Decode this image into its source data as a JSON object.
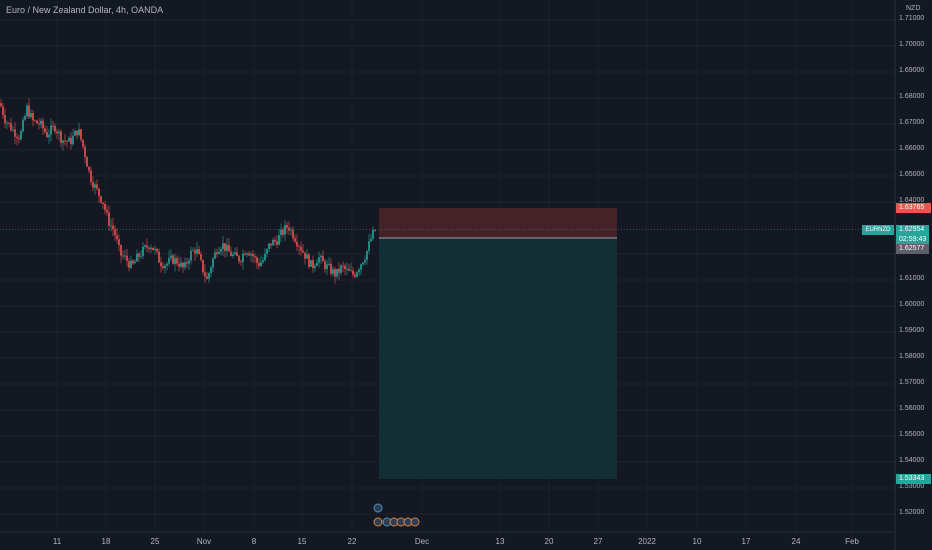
{
  "header": {
    "title": "Euro / New Zealand Dollar, 4h, OANDA",
    "currency": "NZD"
  },
  "price_axis": {
    "labels": [
      "1.71000",
      "1.70000",
      "1.69000",
      "1.68000",
      "1.67000",
      "1.66000",
      "1.65000",
      "1.64000",
      "1.62000",
      "1.61000",
      "1.60000",
      "1.59000",
      "1.58000",
      "1.57000",
      "1.56000",
      "1.55000",
      "1.54000",
      "1.53000",
      "1.52000"
    ]
  },
  "time_axis": {
    "labels": [
      "11",
      "18",
      "25",
      "Nov",
      "8",
      "15",
      "22",
      "Dec",
      "13",
      "20",
      "27",
      "2022",
      "10",
      "17",
      "24",
      "Feb"
    ]
  },
  "price_tags": {
    "stop_loss": "1.63765",
    "symbol": "EURNZD",
    "current_price": "1.62954",
    "countdown": "02:59:43",
    "entry": "1.62577",
    "take_profit": "1.53343"
  },
  "colors": {
    "background": "#141822",
    "up_candle": "#26a69a",
    "down_candle": "#ef5350",
    "stop_zone": "#4a2328",
    "target_zone": "#123235"
  },
  "chart_data": {
    "type": "candlestick",
    "symbol": "EURNZD",
    "timeframe": "4h",
    "price_range": [
      1.51,
      1.715
    ],
    "x_labels": [
      "11",
      "18",
      "25",
      "Nov",
      "8",
      "15",
      "22",
      "Dec",
      "13",
      "20",
      "27",
      "2022",
      "10",
      "17",
      "24",
      "Feb"
    ],
    "last_price": 1.62954,
    "trend_path": [
      [
        0,
        1.678
      ],
      [
        5,
        1.672
      ],
      [
        12,
        1.668
      ],
      [
        20,
        1.665
      ],
      [
        27,
        1.676
      ],
      [
        33,
        1.671
      ],
      [
        40,
        1.67
      ],
      [
        47,
        1.666
      ],
      [
        55,
        1.669
      ],
      [
        62,
        1.664
      ],
      [
        70,
        1.663
      ],
      [
        78,
        1.668
      ],
      [
        84,
        1.66
      ],
      [
        90,
        1.65
      ],
      [
        96,
        1.645
      ],
      [
        103,
        1.64
      ],
      [
        108,
        1.633
      ],
      [
        114,
        1.629
      ],
      [
        120,
        1.62
      ],
      [
        126,
        1.618
      ],
      [
        132,
        1.615
      ],
      [
        138,
        1.619
      ],
      [
        145,
        1.622
      ],
      [
        150,
        1.624
      ],
      [
        155,
        1.621
      ],
      [
        160,
        1.617
      ],
      [
        166,
        1.616
      ],
      [
        172,
        1.618
      ],
      [
        178,
        1.617
      ],
      [
        184,
        1.614
      ],
      [
        190,
        1.62
      ],
      [
        196,
        1.622
      ],
      [
        202,
        1.615
      ],
      [
        207,
        1.61
      ],
      [
        212,
        1.617
      ],
      [
        217,
        1.622
      ],
      [
        222,
        1.624
      ],
      [
        228,
        1.621
      ],
      [
        234,
        1.619
      ],
      [
        240,
        1.618
      ],
      [
        246,
        1.622
      ],
      [
        252,
        1.62
      ],
      [
        258,
        1.616
      ],
      [
        264,
        1.618
      ],
      [
        270,
        1.624
      ],
      [
        276,
        1.625
      ],
      [
        282,
        1.628
      ],
      [
        288,
        1.631
      ],
      [
        294,
        1.627
      ],
      [
        300,
        1.623
      ],
      [
        306,
        1.619
      ],
      [
        312,
        1.615
      ],
      [
        318,
        1.619
      ],
      [
        324,
        1.616
      ],
      [
        330,
        1.614
      ],
      [
        336,
        1.612
      ],
      [
        342,
        1.615
      ],
      [
        348,
        1.613
      ],
      [
        354,
        1.612
      ],
      [
        360,
        1.616
      ],
      [
        366,
        1.62
      ],
      [
        372,
        1.627
      ],
      [
        376,
        1.62954
      ]
    ],
    "position": {
      "type": "short",
      "entry": 1.62577,
      "stop_loss": 1.63765,
      "take_profit": 1.53343
    }
  }
}
